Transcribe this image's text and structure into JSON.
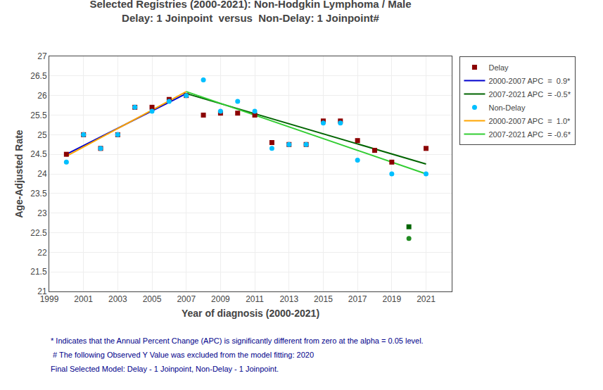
{
  "chart_data": {
    "type": "scatter",
    "title": "Selected Registries (2000-2021): Non-Hodgkin Lymphoma / Male",
    "subtitle": "Delay: 1 Joinpoint  versus  Non-Delay: 1 Joinpoint#",
    "x_label": "Year of diagnosis (2000-2021)",
    "y_label": "Age-Adjusted Rate",
    "xlim": [
      1999,
      2022.5
    ],
    "ylim": [
      21,
      27
    ],
    "xticks": [
      1999,
      2001,
      2003,
      2005,
      2007,
      2009,
      2011,
      2013,
      2015,
      2017,
      2019,
      2021
    ],
    "yticks": [
      21,
      21.5,
      22,
      22.5,
      23,
      23.5,
      24,
      24.5,
      25,
      25.5,
      26,
      26.5,
      27
    ],
    "grid": true,
    "legend": "right",
    "series": [
      {
        "name": "Delay",
        "type": "scatter",
        "marker": "square",
        "color": "#8B0000",
        "x": [
          2000,
          2001,
          2002,
          2003,
          2004,
          2005,
          2006,
          2007,
          2008,
          2009,
          2010,
          2011,
          2012,
          2013,
          2014,
          2015,
          2016,
          2017,
          2018,
          2019,
          2021
        ],
        "values": [
          24.5,
          25.0,
          24.65,
          25.0,
          25.7,
          25.7,
          25.9,
          26.0,
          25.5,
          25.55,
          25.55,
          25.5,
          24.8,
          24.75,
          24.75,
          25.35,
          25.35,
          24.85,
          24.6,
          24.3,
          24.65
        ]
      },
      {
        "name": "2000-2007 APC  =  0.9*",
        "type": "line",
        "line_style": "solid",
        "color": "#0000CD",
        "x": [
          2000,
          2007
        ],
        "values": [
          24.5,
          26.05
        ]
      },
      {
        "name": "2007-2021 APC  = -0.5*",
        "type": "line",
        "line_style": "solid",
        "color": "#006400",
        "x": [
          2007,
          2021
        ],
        "values": [
          26.05,
          24.25
        ]
      },
      {
        "name": "Non-Delay",
        "type": "scatter",
        "marker": "circle",
        "color": "#00BFFF",
        "x": [
          2000,
          2001,
          2002,
          2003,
          2004,
          2005,
          2006,
          2007,
          2008,
          2009,
          2010,
          2011,
          2012,
          2013,
          2014,
          2015,
          2016,
          2017,
          2019,
          2021
        ],
        "values": [
          24.3,
          25.0,
          24.65,
          25.0,
          25.7,
          25.6,
          25.85,
          26.0,
          26.4,
          25.6,
          25.85,
          25.6,
          24.65,
          24.75,
          24.75,
          25.3,
          25.3,
          24.35,
          24.0,
          24.0
        ]
      },
      {
        "name": "2000-2007 APC  =  1.0*",
        "type": "line",
        "line_style": "solid",
        "color": "#FFA500",
        "x": [
          2000,
          2007
        ],
        "values": [
          24.45,
          26.1
        ]
      },
      {
        "name": "2007-2021 APC  = -0.6*",
        "type": "line",
        "line_style": "solid",
        "color": "#32CD32",
        "x": [
          2007,
          2021
        ],
        "values": [
          26.1,
          24.0
        ]
      },
      {
        "type": "scatter",
        "marker": "square",
        "color": "#006400",
        "x": [
          2020
        ],
        "values": [
          22.65
        ]
      },
      {
        "type": "scatter",
        "marker": "circle",
        "color": "#228B22",
        "x": [
          2020
        ],
        "values": [
          22.35
        ]
      }
    ],
    "annotations": [
      {
        "text": "* Indicates that the Annual Percent Change (APC) is significantly different from zero at the alpha = 0.05 level.",
        "color": "#00008B"
      },
      {
        "text": " # The following Observed Y Value was excluded from the model fitting: 2020",
        "color": "#00008B"
      },
      {
        "text": "Final Selected Model: Delay - 1 Joinpoint, Non-Delay - 1 Joinpoint.",
        "color": "#00008B"
      }
    ]
  }
}
